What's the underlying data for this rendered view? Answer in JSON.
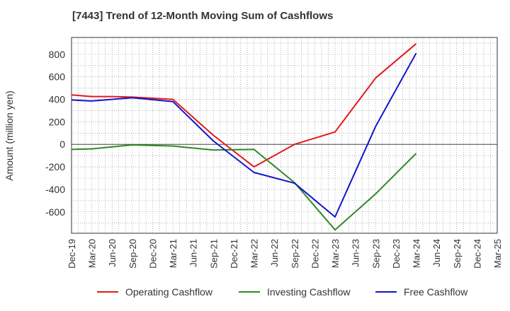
{
  "chart_data": {
    "type": "line",
    "title": "[7443]  Trend of 12-Month Moving Sum of Cashflows",
    "xlabel": "",
    "ylabel": "Amount (million yen)",
    "categories": [
      "Dec-19",
      "Mar-20",
      "Jun-20",
      "Sep-20",
      "Dec-20",
      "Mar-21",
      "Jun-21",
      "Sep-21",
      "Dec-21",
      "Mar-22",
      "Jun-22",
      "Sep-22",
      "Dec-22",
      "Mar-23",
      "Jun-23",
      "Sep-23",
      "Dec-23",
      "Mar-24",
      "Jun-24",
      "Sep-24",
      "Dec-24",
      "Mar-25"
    ],
    "yticks": [
      -600,
      -400,
      -200,
      0,
      200,
      400,
      600,
      800
    ],
    "ylim": [
      -790,
      950
    ],
    "grid": true,
    "legend_position": "bottom",
    "series": [
      {
        "name": "Operating Cashflow",
        "color": "#e31a1c",
        "values": [
          440,
          425,
          425,
          420,
          410,
          400,
          null,
          80,
          null,
          -200,
          null,
          0,
          null,
          110,
          null,
          590,
          null,
          895,
          null,
          null,
          null,
          null
        ]
      },
      {
        "name": "Investing Cashflow",
        "color": "#2e8b22",
        "values": [
          -45,
          -40,
          null,
          -5,
          null,
          -15,
          null,
          -50,
          null,
          -45,
          null,
          -340,
          null,
          -760,
          null,
          -440,
          null,
          -80,
          null,
          null,
          null,
          null
        ]
      },
      {
        "name": "Free Cashflow",
        "color": "#1414cc",
        "values": [
          395,
          385,
          null,
          415,
          null,
          380,
          null,
          30,
          null,
          -250,
          null,
          -345,
          null,
          -645,
          null,
          160,
          null,
          810,
          null,
          null,
          null,
          null
        ]
      }
    ]
  }
}
